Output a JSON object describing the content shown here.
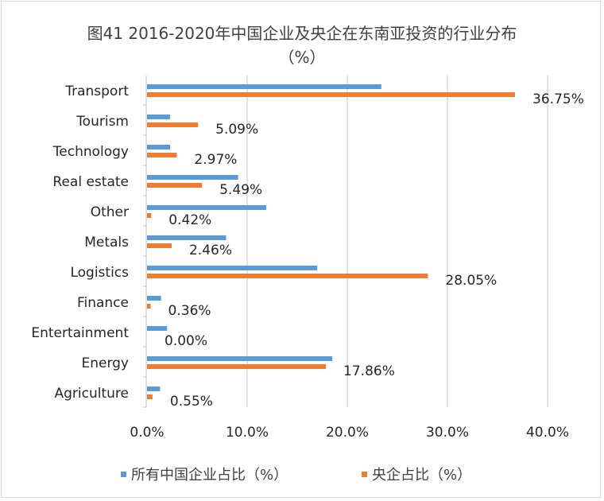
{
  "chart_data": {
    "type": "bar",
    "orientation": "horizontal",
    "title": "图41 2016-2020年中国企业及央企在东南亚投资的行业分布",
    "subtitle": "（%）",
    "xlabel": "",
    "ylabel": "",
    "xlim": [
      0,
      40
    ],
    "x_ticks": [
      "0.0%",
      "10.0%",
      "20.0%",
      "30.0%",
      "40.0%"
    ],
    "x_tick_values": [
      0,
      10,
      20,
      30,
      40
    ],
    "grid": true,
    "legend_position": "bottom",
    "categories": [
      "Transport",
      "Tourism",
      "Technology",
      "Real estate",
      "Other",
      "Metals",
      "Logistics",
      "Finance",
      "Entertainment",
      "Energy",
      "Agriculture"
    ],
    "series": [
      {
        "name": "所有中国企业占比（%）",
        "color": "#5b9bd5",
        "values": [
          23.4,
          2.3,
          2.3,
          9.1,
          11.9,
          7.9,
          17.0,
          1.4,
          2.0,
          18.5,
          1.3
        ]
      },
      {
        "name": "央企占比（%）",
        "color": "#ed7d31",
        "values": [
          36.75,
          5.09,
          2.97,
          5.49,
          0.42,
          2.46,
          28.05,
          0.36,
          0.0,
          17.86,
          0.55
        ],
        "data_labels": [
          "36.75%",
          "5.09%",
          "2.97%",
          "5.49%",
          "0.42%",
          "2.46%",
          "28.05%",
          "0.36%",
          "0.00%",
          "17.86%",
          "0.55%"
        ]
      }
    ]
  }
}
